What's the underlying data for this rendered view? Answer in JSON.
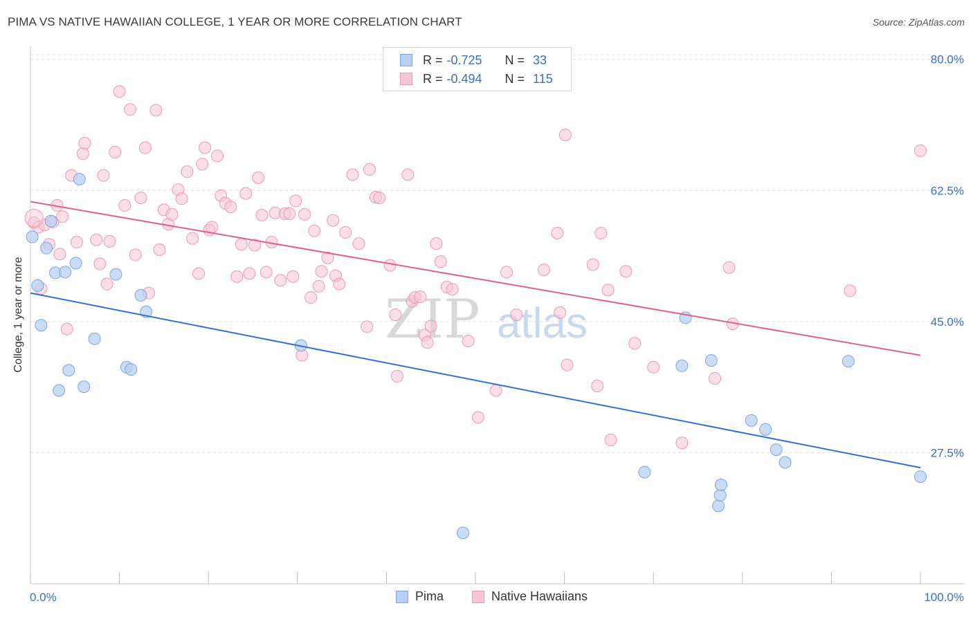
{
  "header": {
    "title": "PIMA VS NATIVE HAWAIIAN COLLEGE, 1 YEAR OR MORE CORRELATION CHART",
    "source": "Source: ZipAtlas.com"
  },
  "watermark": {
    "zip": "ZIP",
    "atlas": "atlas"
  },
  "colors": {
    "pima_fill": "#b8d0f3",
    "pima_stroke": "#7aa6e0",
    "pima_line": "#3070d0",
    "hawaiian_fill": "#f7c5d4",
    "hawaiian_stroke": "#e99ab4",
    "hawaiian_line": "#e0608c",
    "axis_label": "#3b6fc4",
    "grid": "#dddddd"
  },
  "legend": {
    "items": [
      {
        "series": "pima",
        "r_label": "R =",
        "r_value": "-0.725",
        "n_label": "N =",
        "n_value": "33"
      },
      {
        "series": "hawaiian",
        "r_label": "R =",
        "r_value": "-0.494",
        "n_label": "N =",
        "n_value": "115"
      }
    ]
  },
  "bottom_legend": {
    "pima": "Pima",
    "hawaiian": "Native Hawaiians"
  },
  "chart_data": {
    "type": "scatter",
    "title": "PIMA VS NATIVE HAWAIIAN COLLEGE, 1 YEAR OR MORE CORRELATION CHART",
    "xlabel": "",
    "ylabel": "College, 1 year or more",
    "xlim": [
      0,
      100
    ],
    "ylim": [
      10,
      82
    ],
    "x_tick_labels": [
      "0.0%",
      "100.0%"
    ],
    "y_ticks": [
      27.5,
      45.0,
      62.5,
      80.0
    ],
    "y_tick_labels": [
      "27.5%",
      "45.0%",
      "62.5%",
      "80.0%"
    ],
    "grid": true,
    "series": [
      {
        "name": "Pima",
        "trend": {
          "x": [
            0,
            100
          ],
          "y": [
            48.8,
            25.5
          ]
        },
        "points": [
          [
            0.2,
            56.3
          ],
          [
            0.8,
            49.8
          ],
          [
            1.2,
            44.5
          ],
          [
            1.8,
            54.8
          ],
          [
            2.3,
            58.4
          ],
          [
            2.8,
            51.5
          ],
          [
            3.2,
            35.8
          ],
          [
            3.9,
            51.6
          ],
          [
            4.3,
            38.5
          ],
          [
            5.1,
            52.8
          ],
          [
            5.5,
            64.0
          ],
          [
            6.0,
            36.3
          ],
          [
            7.2,
            42.7
          ],
          [
            9.6,
            51.3
          ],
          [
            10.8,
            38.9
          ],
          [
            11.3,
            38.6
          ],
          [
            12.4,
            48.5
          ],
          [
            13.0,
            46.3
          ],
          [
            30.4,
            41.8
          ],
          [
            48.6,
            16.8
          ],
          [
            69.0,
            24.9
          ],
          [
            73.2,
            39.1
          ],
          [
            73.6,
            45.5
          ],
          [
            76.5,
            39.8
          ],
          [
            77.3,
            20.4
          ],
          [
            77.5,
            21.8
          ],
          [
            77.6,
            23.2
          ],
          [
            81.0,
            31.8
          ],
          [
            82.6,
            30.6
          ],
          [
            83.8,
            27.9
          ],
          [
            84.8,
            26.2
          ],
          [
            91.9,
            39.7
          ],
          [
            100.0,
            24.3
          ]
        ]
      },
      {
        "name": "Native Hawaiians",
        "trend": {
          "x": [
            0,
            100
          ],
          "y": [
            61.0,
            40.5
          ]
        },
        "points": [
          [
            0.4,
            58.2
          ],
          [
            0.9,
            57.6
          ],
          [
            1.2,
            49.4
          ],
          [
            1.6,
            57.9
          ],
          [
            2.1,
            55.3
          ],
          [
            2.5,
            58.3
          ],
          [
            3.0,
            60.5
          ],
          [
            3.3,
            54.0
          ],
          [
            3.6,
            59.0
          ],
          [
            4.1,
            44.0
          ],
          [
            4.6,
            64.5
          ],
          [
            5.2,
            55.6
          ],
          [
            5.9,
            67.4
          ],
          [
            6.1,
            68.8
          ],
          [
            7.4,
            55.9
          ],
          [
            7.8,
            52.7
          ],
          [
            8.2,
            64.5
          ],
          [
            8.6,
            50.0
          ],
          [
            8.9,
            55.7
          ],
          [
            9.5,
            67.6
          ],
          [
            10.0,
            75.7
          ],
          [
            10.6,
            60.5
          ],
          [
            11.2,
            73.3
          ],
          [
            11.8,
            53.9
          ],
          [
            12.4,
            61.5
          ],
          [
            12.9,
            68.2
          ],
          [
            13.3,
            48.8
          ],
          [
            14.1,
            73.2
          ],
          [
            14.5,
            54.6
          ],
          [
            15.0,
            59.9
          ],
          [
            15.5,
            58.0
          ],
          [
            15.9,
            59.3
          ],
          [
            16.6,
            62.6
          ],
          [
            17.0,
            61.4
          ],
          [
            17.6,
            65.0
          ],
          [
            18.2,
            56.1
          ],
          [
            18.9,
            51.4
          ],
          [
            19.3,
            66.0
          ],
          [
            19.6,
            68.2
          ],
          [
            20.1,
            57.2
          ],
          [
            20.4,
            57.6
          ],
          [
            21.0,
            67.1
          ],
          [
            21.4,
            61.8
          ],
          [
            21.9,
            60.8
          ],
          [
            22.5,
            60.3
          ],
          [
            23.2,
            51.0
          ],
          [
            23.7,
            55.3
          ],
          [
            24.2,
            62.1
          ],
          [
            24.6,
            51.4
          ],
          [
            25.2,
            55.2
          ],
          [
            25.6,
            64.2
          ],
          [
            26.0,
            59.2
          ],
          [
            26.5,
            51.6
          ],
          [
            27.1,
            55.6
          ],
          [
            27.5,
            59.5
          ],
          [
            28.1,
            50.5
          ],
          [
            28.6,
            59.4
          ],
          [
            29.1,
            59.4
          ],
          [
            29.5,
            51.0
          ],
          [
            29.8,
            61.1
          ],
          [
            30.5,
            40.5
          ],
          [
            30.8,
            59.3
          ],
          [
            31.5,
            48.2
          ],
          [
            31.9,
            57.1
          ],
          [
            32.4,
            49.7
          ],
          [
            32.7,
            51.7
          ],
          [
            33.4,
            53.5
          ],
          [
            34.0,
            58.5
          ],
          [
            34.3,
            51.1
          ],
          [
            34.7,
            50.0
          ],
          [
            35.4,
            56.9
          ],
          [
            36.2,
            64.6
          ],
          [
            36.9,
            55.4
          ],
          [
            37.8,
            44.3
          ],
          [
            38.1,
            65.3
          ],
          [
            38.8,
            61.6
          ],
          [
            39.2,
            61.5
          ],
          [
            40.4,
            52.5
          ],
          [
            41.2,
            37.7
          ],
          [
            41.0,
            45.9
          ],
          [
            42.4,
            64.6
          ],
          [
            42.9,
            47.7
          ],
          [
            43.2,
            48.2
          ],
          [
            43.8,
            48.3
          ],
          [
            44.3,
            43.2
          ],
          [
            44.6,
            42.2
          ],
          [
            45.0,
            44.4
          ],
          [
            45.6,
            55.4
          ],
          [
            46.1,
            53.0
          ],
          [
            46.8,
            49.6
          ],
          [
            47.4,
            49.3
          ],
          [
            49.2,
            42.4
          ],
          [
            50.3,
            32.2
          ],
          [
            52.3,
            35.8
          ],
          [
            53.5,
            51.6
          ],
          [
            54.6,
            45.9
          ],
          [
            57.7,
            51.9
          ],
          [
            59.5,
            46.2
          ],
          [
            60.1,
            69.9
          ],
          [
            60.3,
            39.2
          ],
          [
            59.2,
            56.8
          ],
          [
            63.2,
            52.6
          ],
          [
            63.7,
            36.4
          ],
          [
            64.1,
            56.8
          ],
          [
            64.9,
            49.2
          ],
          [
            65.2,
            29.2
          ],
          [
            66.9,
            51.7
          ],
          [
            67.9,
            42.1
          ],
          [
            70.0,
            38.9
          ],
          [
            73.2,
            28.8
          ],
          [
            76.9,
            37.4
          ],
          [
            78.5,
            52.2
          ],
          [
            78.9,
            44.7
          ],
          [
            92.1,
            49.1
          ],
          [
            100.0,
            67.8
          ]
        ]
      }
    ]
  }
}
